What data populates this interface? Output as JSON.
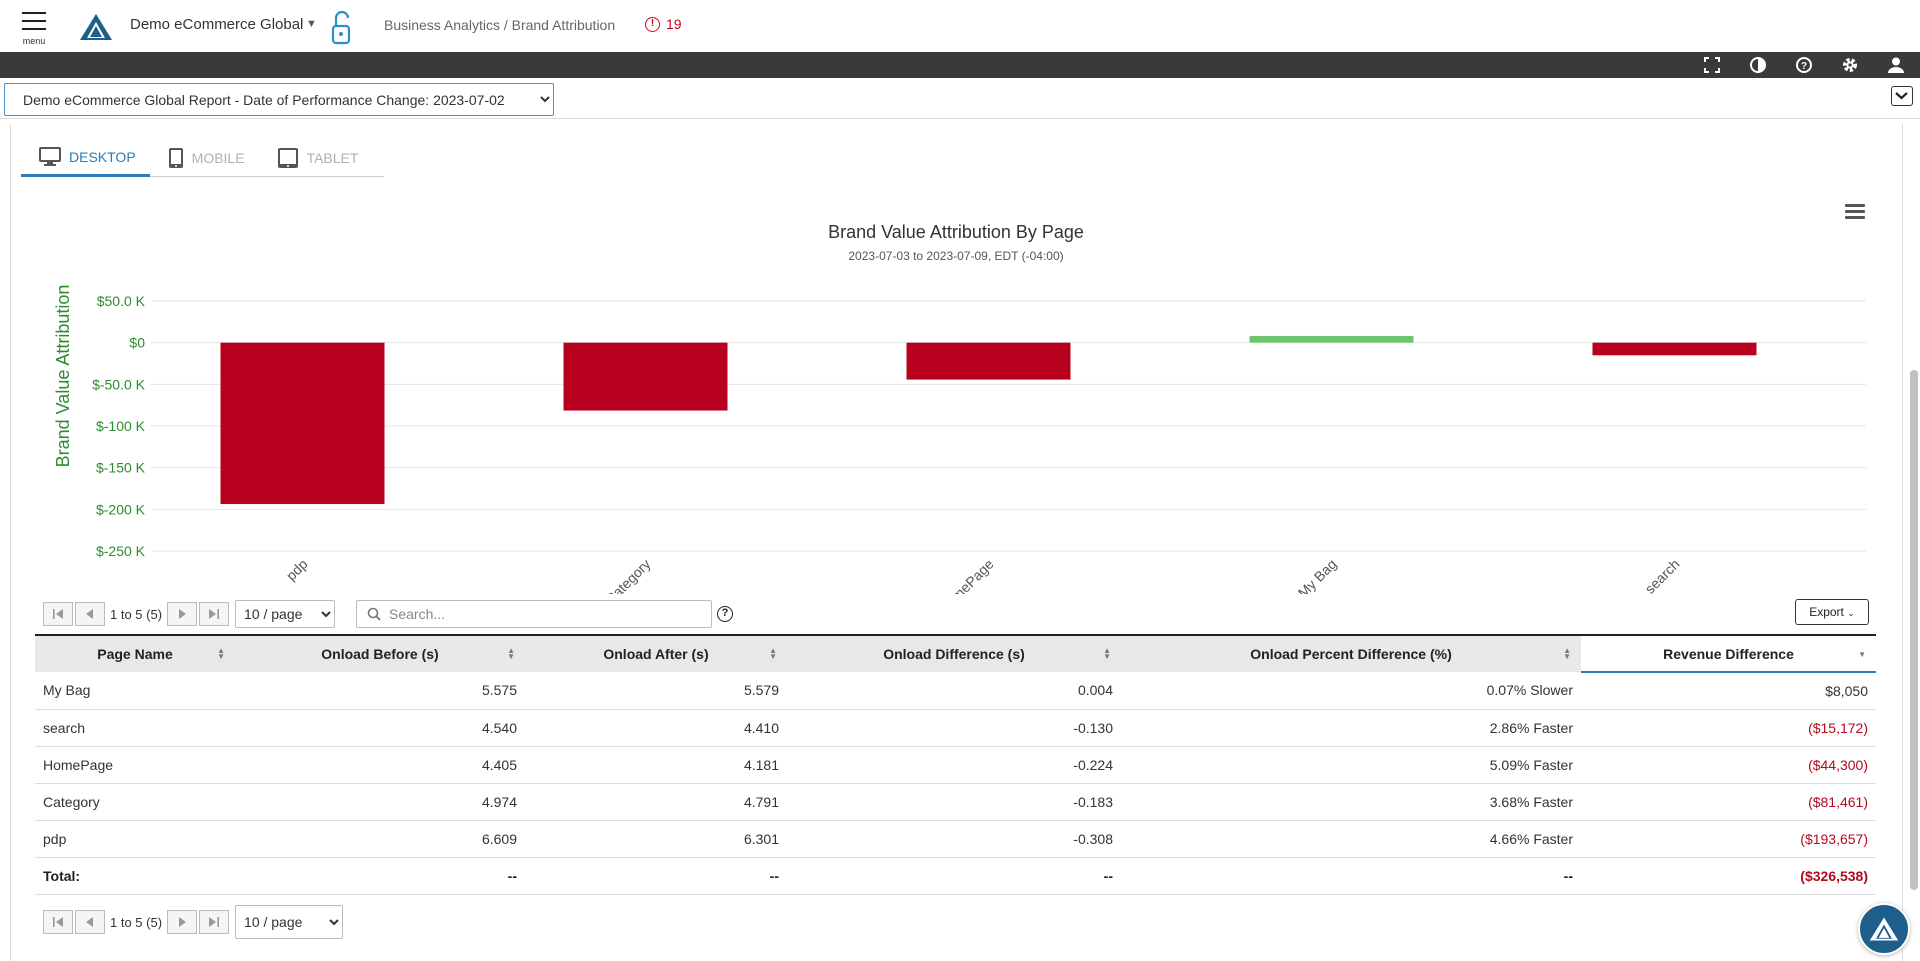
{
  "header": {
    "menu_label": "menu",
    "account_name": "Demo eCommerce Global",
    "breadcrumb": "Business Analytics / Brand Attribution",
    "alert_count": "19"
  },
  "report_select": {
    "selected": "Demo eCommerce Global Report - Date of Performance Change: 2023-07-02"
  },
  "tabs": [
    {
      "label": "DESKTOP",
      "icon": "desktop-icon",
      "active": true
    },
    {
      "label": "MOBILE",
      "icon": "mobile-icon",
      "active": false
    },
    {
      "label": "TABLET",
      "icon": "tablet-icon",
      "active": false
    }
  ],
  "chart_data": {
    "type": "bar",
    "title": "Brand Value Attribution By Page",
    "subtitle": "2023-07-03 to 2023-07-09, EDT (-04:00)",
    "ylabel": "Brand Value Attribution",
    "categories": [
      "pdp",
      "Category",
      "HomePage",
      "My Bag",
      "search"
    ],
    "values": [
      -193657,
      -81461,
      -44300,
      8050,
      -15172
    ],
    "yticks": [
      "$50.0 K",
      "$0",
      "$-50.0 K",
      "$-100 K",
      "$-150 K",
      "$-200 K",
      "$-250 K"
    ],
    "ylim": [
      -250000,
      50000
    ],
    "grid": true,
    "colors": {
      "positive": "#6cc56c",
      "negative": "#b8001f",
      "axis_text": "#2e8b2e"
    }
  },
  "pager": {
    "range_text": "1 to 5 (5)",
    "page_size": "10 / page"
  },
  "search": {
    "placeholder": "Search..."
  },
  "export_label": "Export",
  "table": {
    "columns": [
      "Page Name",
      "Onload Before (s)",
      "Onload After (s)",
      "Onload Difference (s)",
      "Onload Percent Difference (%)",
      "Revenue Difference"
    ],
    "rows": [
      [
        "My Bag",
        "5.575",
        "5.579",
        "0.004",
        "0.07% Slower",
        "$8,050"
      ],
      [
        "search",
        "4.540",
        "4.410",
        "-0.130",
        "2.86% Faster",
        "($15,172)"
      ],
      [
        "HomePage",
        "4.405",
        "4.181",
        "-0.224",
        "5.09% Faster",
        "($44,300)"
      ],
      [
        "Category",
        "4.974",
        "4.791",
        "-0.183",
        "3.68% Faster",
        "($81,461)"
      ],
      [
        "pdp",
        "6.609",
        "6.301",
        "-0.308",
        "4.66% Faster",
        "($193,657)"
      ]
    ],
    "total": [
      "Total:",
      "--",
      "--",
      "--",
      "--",
      "($326,538)"
    ]
  }
}
